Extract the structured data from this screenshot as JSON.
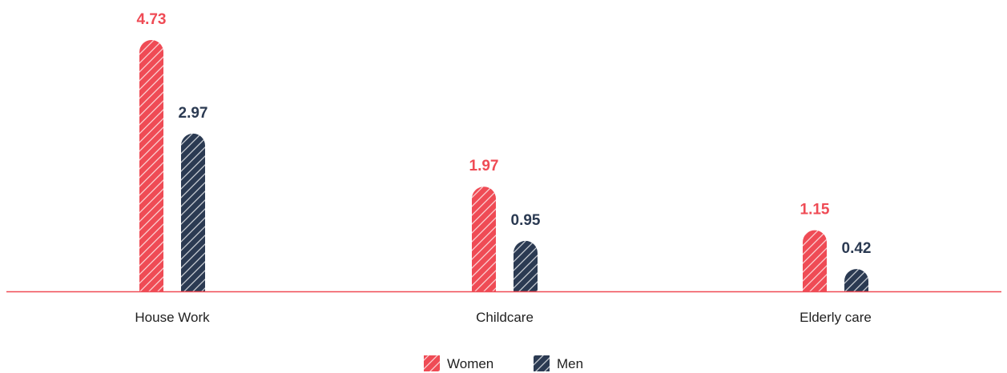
{
  "chart_data": {
    "type": "bar",
    "categories": [
      "House Work",
      "Childcare",
      "Elderly care"
    ],
    "series": [
      {
        "name": "Women",
        "values": [
          4.73,
          1.97,
          1.15
        ],
        "color": "#ef4b55"
      },
      {
        "name": "Men",
        "values": [
          2.97,
          0.95,
          0.42
        ],
        "color": "#2b3a52"
      }
    ],
    "value_labels": [
      [
        "4.73",
        "1.97",
        "1.15"
      ],
      [
        "2.97",
        "0.95",
        "0.42"
      ]
    ],
    "ylim": [
      0,
      4.73
    ],
    "baseline_color": "#ef4b55",
    "bar_pattern": "diagonal-hatch",
    "legend_position": "bottom-center",
    "grid": false
  }
}
